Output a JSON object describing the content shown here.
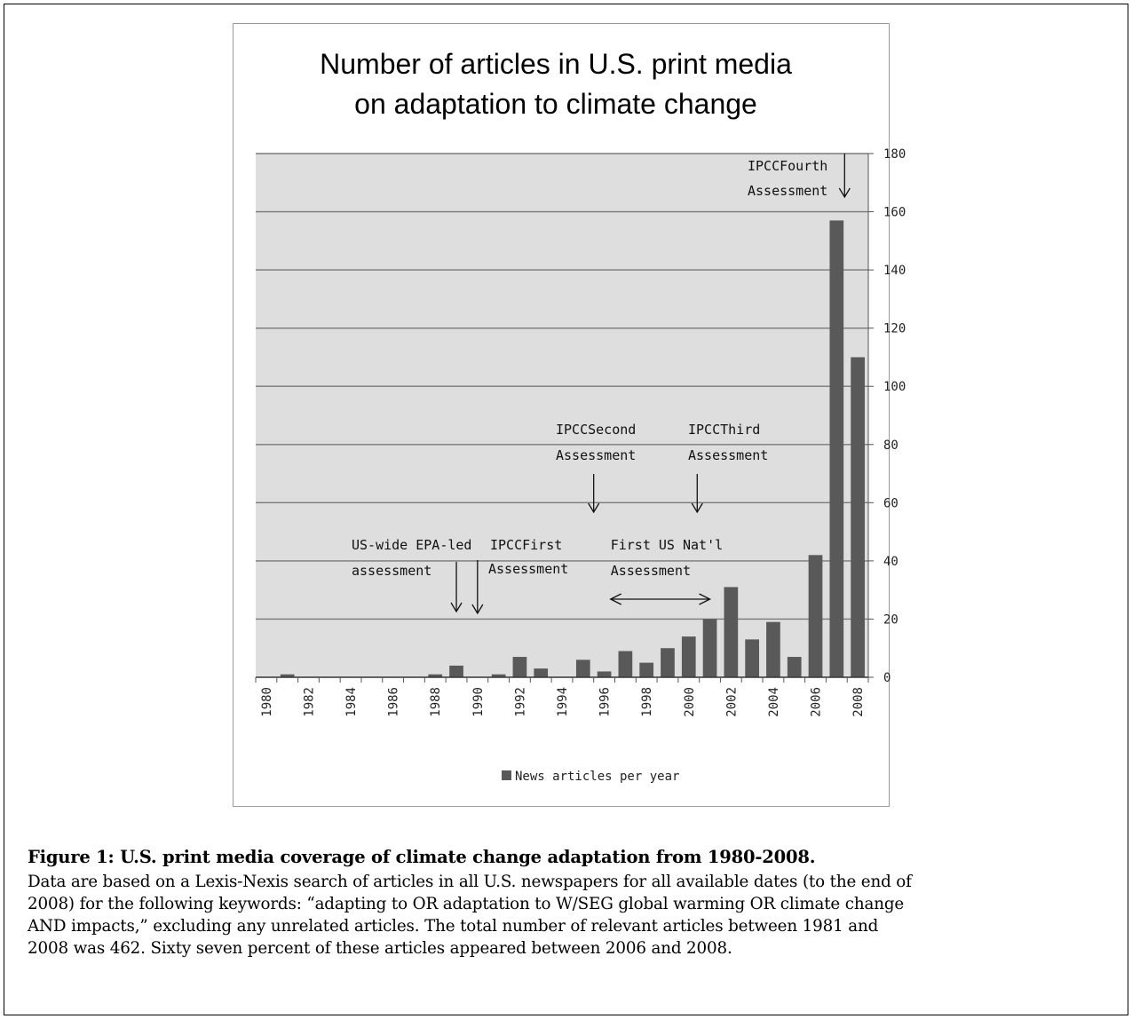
{
  "chart_data": {
    "type": "bar",
    "title_line1": "Number of articles in U.S. print media",
    "title_line2": "on adaptation to climate change",
    "categories": [
      "1980",
      "1981",
      "1982",
      "1983",
      "1984",
      "1985",
      "1986",
      "1987",
      "1988",
      "1989",
      "1990",
      "1991",
      "1992",
      "1993",
      "1994",
      "1995",
      "1996",
      "1997",
      "1998",
      "1999",
      "2000",
      "2001",
      "2002",
      "2003",
      "2004",
      "2005",
      "2006",
      "2007",
      "2008"
    ],
    "x_tick_labels": [
      "1980",
      "1982",
      "1984",
      "1986",
      "1988",
      "1990",
      "1992",
      "1994",
      "1996",
      "1998",
      "2000",
      "2002",
      "2004",
      "2006",
      "2008"
    ],
    "values": [
      0,
      1,
      0,
      0,
      0,
      0,
      0,
      0,
      1,
      4,
      0,
      1,
      7,
      3,
      0,
      6,
      2,
      9,
      5,
      10,
      14,
      20,
      31,
      13,
      19,
      7,
      42,
      157,
      110
    ],
    "series_name": "News articles per year",
    "ylim": [
      0,
      180
    ],
    "y_ticks": [
      0,
      20,
      40,
      60,
      80,
      100,
      120,
      140,
      160,
      180
    ],
    "y_axis_side": "right",
    "grid": true,
    "legend_placement": "bottom",
    "bar_color": "#595959",
    "plot_bg": "#dedede",
    "annotations": [
      {
        "lines": [
          "US-wide EPA-led",
          "assessment"
        ],
        "arrow": "down",
        "year": 1989
      },
      {
        "lines": [
          "IPCCFirst",
          "Assessment"
        ],
        "arrow": "down",
        "year": 1990
      },
      {
        "lines": [
          "IPCCSecond",
          "Assessment"
        ],
        "arrow": "down",
        "year": 1995.5
      },
      {
        "lines": [
          "IPCCThird",
          "Assessment"
        ],
        "arrow": "down",
        "year": 2000.4
      },
      {
        "lines": [
          "First US Nat'l",
          "Assessment"
        ],
        "arrow": "double",
        "year_from": 1996.3,
        "year_to": 2001
      },
      {
        "lines": [
          "IPCCFourth",
          "Assessment"
        ],
        "arrow": "down",
        "year": 2007
      }
    ]
  },
  "caption": {
    "title": "Figure 1: U.S. print media coverage of climate change adaptation from 1980-2008.",
    "body_lines": [
      "Data are based on a Lexis-Nexis search of articles in all U.S. newspapers for all available dates (to the end of",
      "2008) for the following keywords: “adapting to OR adaptation to W/SEG global warming OR climate change",
      "AND impacts,” excluding any unrelated articles. The total number of relevant articles between 1981 and",
      "2008 was 462. Sixty seven percent of these articles appeared between 2006 and 2008."
    ]
  }
}
